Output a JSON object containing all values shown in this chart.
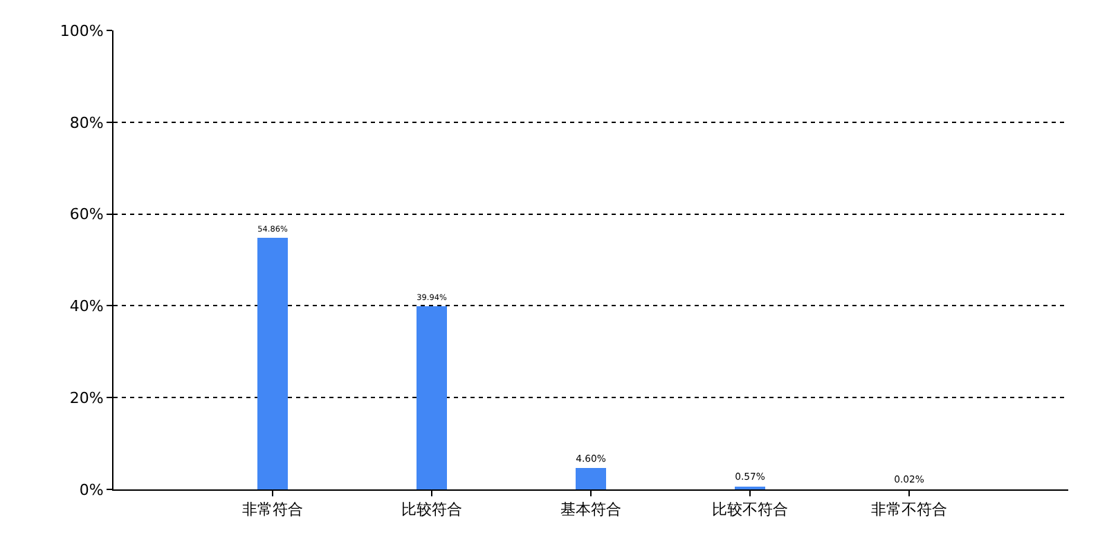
{
  "chart_data": {
    "type": "bar",
    "categories": [
      "非常符合",
      "比较符合",
      "基本符合",
      "比较不符合",
      "非常不符合"
    ],
    "values": [
      54.86,
      39.94,
      4.6,
      0.57,
      0.02
    ],
    "value_labels": [
      "54.86%",
      "39.94%",
      "4.60%",
      "0.57%",
      "0.02%"
    ],
    "color": "#4287f5",
    "ylim": [
      0,
      100
    ],
    "yticks": [
      {
        "value": 0,
        "label": "0%"
      },
      {
        "value": 20,
        "label": "20%"
      },
      {
        "value": 40,
        "label": "40%"
      },
      {
        "value": 60,
        "label": "60%"
      },
      {
        "value": 80,
        "label": "80%"
      },
      {
        "value": 100,
        "label": "100%"
      }
    ],
    "grid": "y",
    "legend": false
  }
}
